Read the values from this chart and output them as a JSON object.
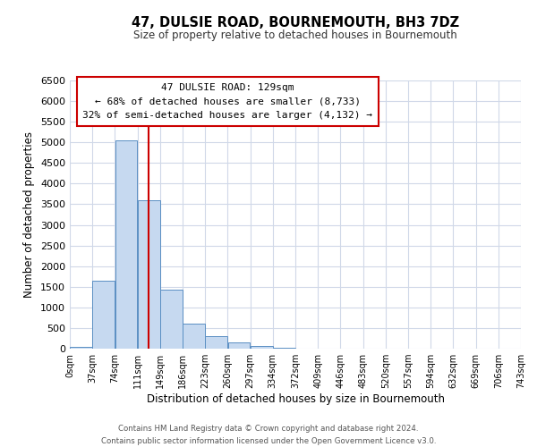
{
  "title": "47, DULSIE ROAD, BOURNEMOUTH, BH3 7DZ",
  "subtitle": "Size of property relative to detached houses in Bournemouth",
  "xlabel": "Distribution of detached houses by size in Bournemouth",
  "ylabel": "Number of detached properties",
  "bin_edges": [
    0,
    37,
    74,
    111,
    148,
    185,
    222,
    259,
    296,
    333,
    370,
    407,
    444,
    481,
    518,
    555,
    592,
    629,
    666,
    703,
    740
  ],
  "bin_labels": [
    "0sqm",
    "37sqm",
    "74sqm",
    "111sqm",
    "149sqm",
    "186sqm",
    "223sqm",
    "260sqm",
    "297sqm",
    "334sqm",
    "372sqm",
    "409sqm",
    "446sqm",
    "483sqm",
    "520sqm",
    "557sqm",
    "594sqm",
    "632sqm",
    "669sqm",
    "706sqm",
    "743sqm"
  ],
  "bar_heights": [
    50,
    1650,
    5050,
    3600,
    1430,
    610,
    300,
    145,
    60,
    20,
    5,
    0,
    0,
    0,
    0,
    0,
    0,
    0,
    0,
    0
  ],
  "bar_color": "#c6d9f0",
  "bar_edge_color": "#5a8fc3",
  "property_line_x": 129,
  "property_line_color": "#cc0000",
  "ylim": [
    0,
    6500
  ],
  "yticks": [
    0,
    500,
    1000,
    1500,
    2000,
    2500,
    3000,
    3500,
    4000,
    4500,
    5000,
    5500,
    6000,
    6500
  ],
  "annotation_title": "47 DULSIE ROAD: 129sqm",
  "annotation_line1": "← 68% of detached houses are smaller (8,733)",
  "annotation_line2": "32% of semi-detached houses are larger (4,132) →",
  "annotation_box_color": "#cc0000",
  "footer_line1": "Contains HM Land Registry data © Crown copyright and database right 2024.",
  "footer_line2": "Contains public sector information licensed under the Open Government Licence v3.0.",
  "background_color": "#ffffff",
  "grid_color": "#d0d8e8"
}
